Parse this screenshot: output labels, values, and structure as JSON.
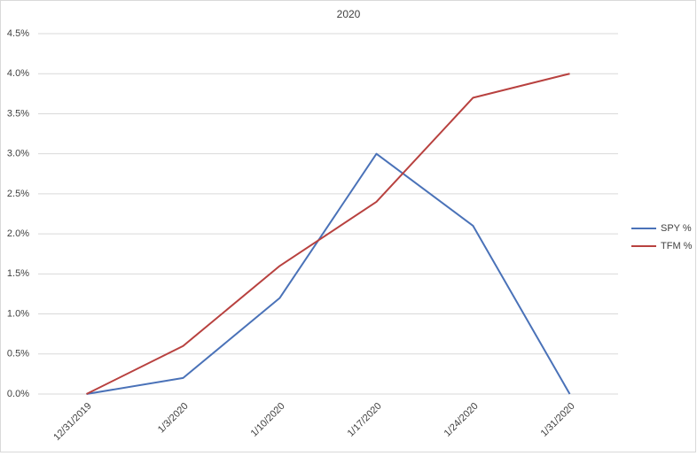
{
  "chart_data": {
    "type": "line",
    "title": "2020",
    "categories": [
      "12/31/2019",
      "1/3/2020",
      "1/10/2020",
      "1/17/2020",
      "1/24/2020",
      "1/31/2020"
    ],
    "series": [
      {
        "name": "SPY %",
        "color": "#4a72b8",
        "values": [
          0,
          0.2,
          1.2,
          3.0,
          2.1,
          0
        ]
      },
      {
        "name": "TFM %",
        "color": "#b8413f",
        "values": [
          0,
          0.6,
          1.6,
          2.4,
          3.7,
          4.0
        ]
      }
    ],
    "ylim": [
      0,
      4.5
    ],
    "yticks": [
      {
        "value": 0,
        "label": "0.0%"
      },
      {
        "value": 0.5,
        "label": "0.5%"
      },
      {
        "value": 1,
        "label": "1.0%"
      },
      {
        "value": 1.5,
        "label": "1.5%"
      },
      {
        "value": 2,
        "label": "2.0%"
      },
      {
        "value": 2.5,
        "label": "2.5%"
      },
      {
        "value": 3,
        "label": "3.0%"
      },
      {
        "value": 3.5,
        "label": "3.5%"
      },
      {
        "value": 4,
        "label": "4.0%"
      },
      {
        "value": 4.5,
        "label": "4.5%"
      }
    ],
    "grid": true,
    "legend": "right"
  }
}
